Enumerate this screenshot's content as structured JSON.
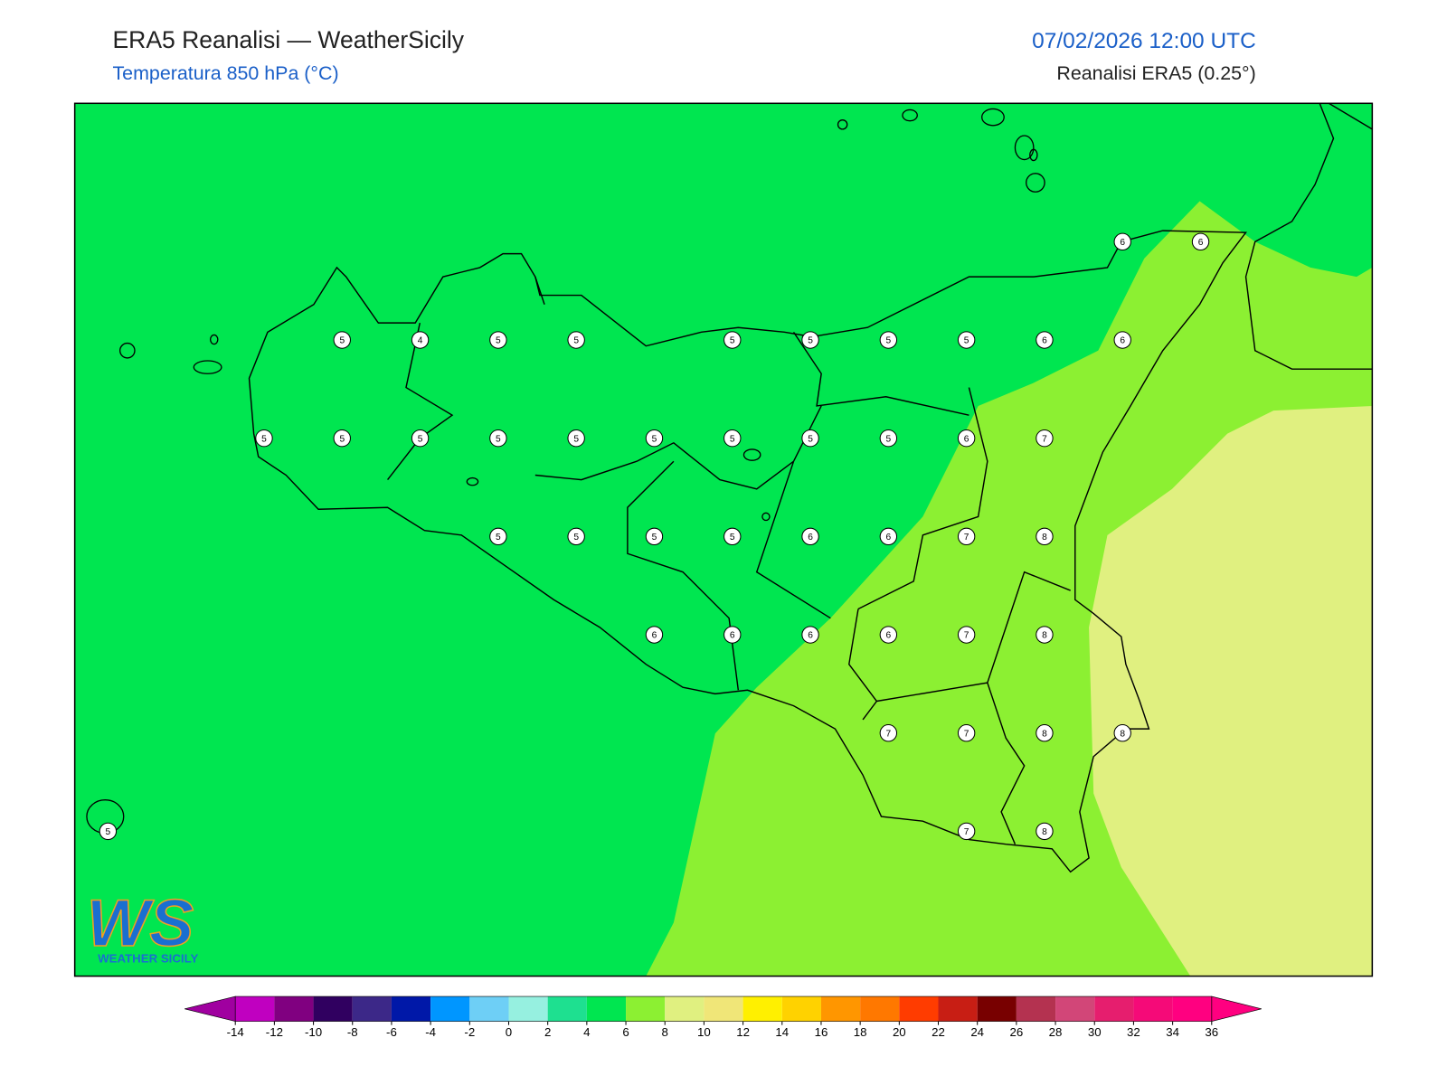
{
  "header": {
    "title": "ERA5 Reanalisi — WeatherSicily",
    "subtitle": "Temperatura 850 hPa (°C)",
    "datetime": "07/02/2026 12:00 UTC",
    "source": "Reanalisi ERA5 (0.25°)"
  },
  "logo": {
    "mark": "WS",
    "text": "WEATHER SICILY"
  },
  "stations": {
    "rows": [
      [
        null,
        null,
        null,
        null,
        null,
        null,
        null,
        null,
        null,
        null,
        null,
        null,
        null,
        6,
        6
      ],
      [
        null,
        null,
        null,
        5,
        4,
        5,
        5,
        null,
        5,
        5,
        5,
        5,
        6,
        6,
        null
      ],
      [
        null,
        null,
        5,
        5,
        5,
        5,
        5,
        5,
        5,
        5,
        5,
        6,
        7,
        null,
        null
      ],
      [
        null,
        null,
        null,
        null,
        null,
        5,
        5,
        5,
        5,
        6,
        6,
        7,
        8,
        null,
        null
      ],
      [
        null,
        null,
        null,
        null,
        null,
        null,
        null,
        6,
        6,
        6,
        6,
        7,
        8,
        null,
        null
      ],
      [
        null,
        null,
        null,
        null,
        null,
        null,
        null,
        null,
        null,
        null,
        7,
        7,
        8,
        8,
        null
      ],
      [
        5,
        null,
        null,
        null,
        null,
        null,
        null,
        null,
        null,
        null,
        null,
        7,
        8,
        null,
        null
      ]
    ]
  },
  "colorbar": {
    "ticks": [
      -14,
      -12,
      -10,
      -8,
      -6,
      -4,
      -2,
      0,
      2,
      4,
      6,
      8,
      10,
      12,
      14,
      16,
      18,
      20,
      22,
      24,
      26,
      28,
      30,
      32,
      34,
      36
    ],
    "colors": [
      "#c000c0",
      "#800080",
      "#300060",
      "#3c2888",
      "#0018a8",
      "#0096ff",
      "#6ecff6",
      "#96f0e0",
      "#1ee090",
      "#00e650",
      "#8cf032",
      "#e0f080",
      "#f0e678",
      "#fff000",
      "#ffd200",
      "#ff9600",
      "#ff7800",
      "#ff3c00",
      "#c81e14",
      "#780000",
      "#b43250",
      "#d24678",
      "#e61e6e",
      "#f50a78",
      "#ff0080"
    ],
    "under_color": "#a000a0",
    "over_color": "#ff0080"
  }
}
